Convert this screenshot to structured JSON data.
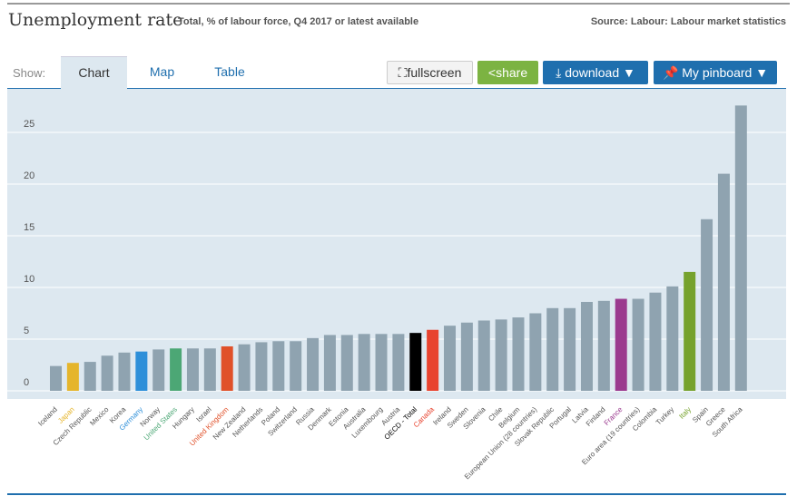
{
  "header": {
    "title": "Unemployment rate",
    "subtitle": "Total, % of labour force, Q4 2017 or latest available",
    "source": "Source: Labour: Labour market statistics"
  },
  "tabs": {
    "show_label": "Show:",
    "items": [
      "Chart",
      "Map",
      "Table"
    ],
    "active": "Chart"
  },
  "toolbar": {
    "fullscreen": "fullscreen",
    "share": "share",
    "download": "download ▼",
    "pinboard": "My pinboard ▼",
    "fullscreen_icon": "expand-icon",
    "share_icon": "share-icon",
    "download_icon": "download-icon",
    "pin_icon": "pin-icon"
  },
  "chart_data": {
    "type": "bar",
    "title": "Unemployment rate",
    "ylim": [
      0,
      29
    ],
    "yticks": [
      0,
      5,
      10,
      15,
      20,
      25
    ],
    "grid": true,
    "categories": [
      "Iceland",
      "Japan",
      "Czech Republic",
      "Mexico",
      "Korea",
      "Germany",
      "Norway",
      "United States",
      "Hungary",
      "Israel",
      "United Kingdom",
      "New Zealand",
      "Netherlands",
      "Poland",
      "Switzerland",
      "Russia",
      "Denmark",
      "Estonia",
      "Australia",
      "Luxembourg",
      "Austria",
      "OECD - Total",
      "Canada",
      "Ireland",
      "Sweden",
      "Slovenia",
      "Chile",
      "Belgium",
      "European Union (28 countries)",
      "Slovak Republic",
      "Portugal",
      "Latvia",
      "Finland",
      "France",
      "Euro area (19 countries)",
      "Colombia",
      "Turkey",
      "Italy",
      "Spain",
      "Greece",
      "South Africa"
    ],
    "values": [
      2.4,
      2.7,
      2.8,
      3.4,
      3.7,
      3.8,
      4.0,
      4.1,
      4.1,
      4.1,
      4.3,
      4.5,
      4.7,
      4.8,
      4.8,
      5.1,
      5.4,
      5.4,
      5.5,
      5.5,
      5.5,
      5.6,
      5.9,
      6.3,
      6.6,
      6.8,
      6.9,
      7.1,
      7.5,
      8.0,
      8.0,
      8.6,
      8.7,
      8.9,
      8.9,
      9.5,
      10.1,
      11.5,
      16.6,
      21.0,
      27.6
    ],
    "default_color": "#8fa3b0",
    "highlight_colors": {
      "Japan": "#e5b52c",
      "Germany": "#2d8fd9",
      "United States": "#4ca775",
      "United Kingdom": "#e0512a",
      "OECD - Total": "#000000",
      "Canada": "#e8432f",
      "France": "#9b3a8f",
      "Italy": "#76a22d"
    }
  }
}
